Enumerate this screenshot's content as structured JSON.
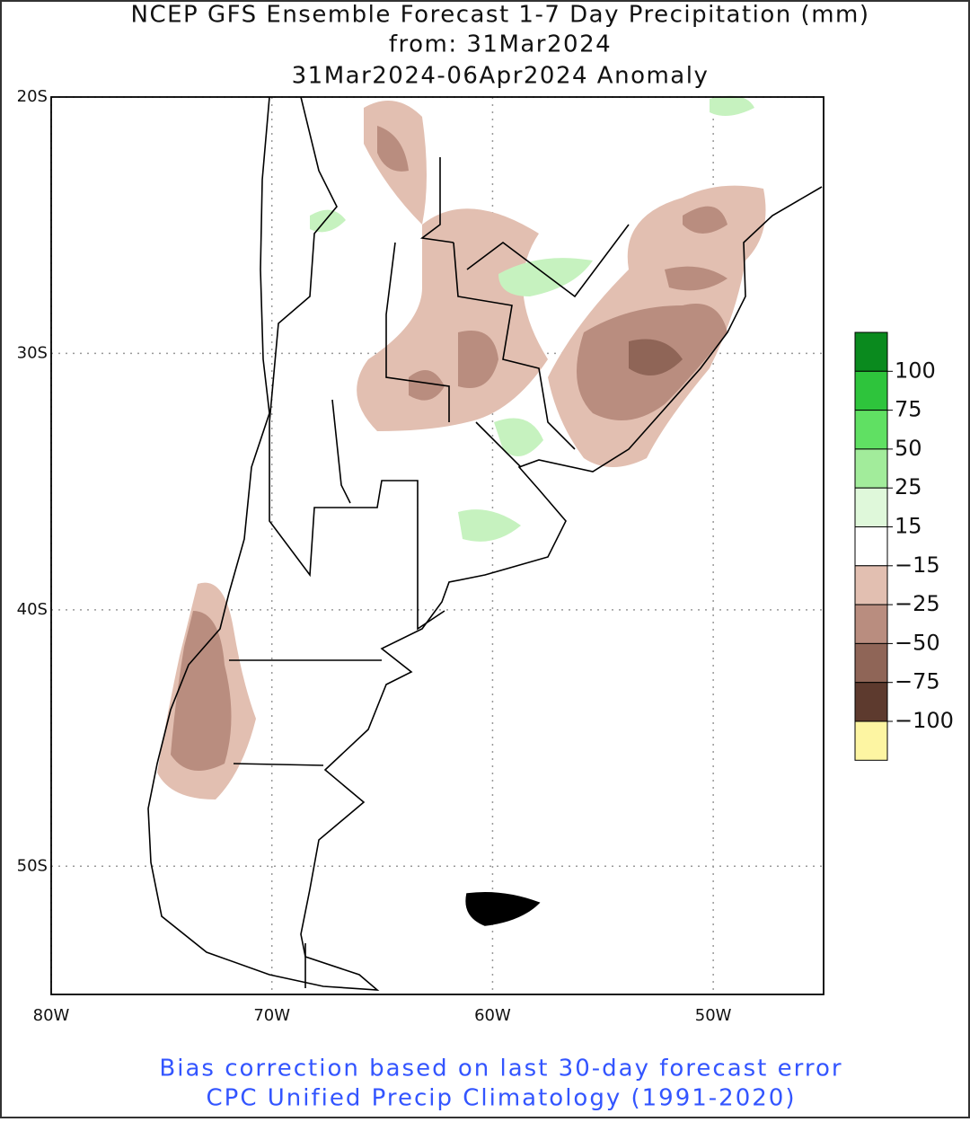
{
  "header": {
    "title": "NCEP GFS Ensemble Forecast 1-7 Day Precipitation (mm)",
    "subtitle": "from: 31Mar2024",
    "period": "31Mar2024-06Apr2024 Anomaly"
  },
  "map": {
    "lonlim": [
      -80,
      -45
    ],
    "latlim": [
      -20,
      -55
    ],
    "lat_ticks": [
      {
        "value": -20,
        "label": "20S"
      },
      {
        "value": -30,
        "label": "30S"
      },
      {
        "value": -40,
        "label": "40S"
      },
      {
        "value": -50,
        "label": "50S"
      }
    ],
    "lon_ticks": [
      {
        "value": -80,
        "label": "80W"
      },
      {
        "value": -70,
        "label": "70W"
      },
      {
        "value": -60,
        "label": "60W"
      },
      {
        "value": -50,
        "label": "50W"
      }
    ]
  },
  "colorbar": {
    "labels": [
      100,
      75,
      50,
      25,
      15,
      -15,
      -25,
      -50,
      -75,
      -100
    ],
    "colors": [
      "#0a8a1e",
      "#2ec43c",
      "#60e063",
      "#a2ec9b",
      "#dff8da",
      "#ffffff",
      "#e2bfb1",
      "#b98d7f",
      "#8f6557",
      "#5d3a2e",
      "#fdf5a2"
    ]
  },
  "footer": {
    "line1": "Bias correction based on last 30-day forecast error",
    "line2": "CPC Unified Precip Climatology (1991-2020)"
  }
}
